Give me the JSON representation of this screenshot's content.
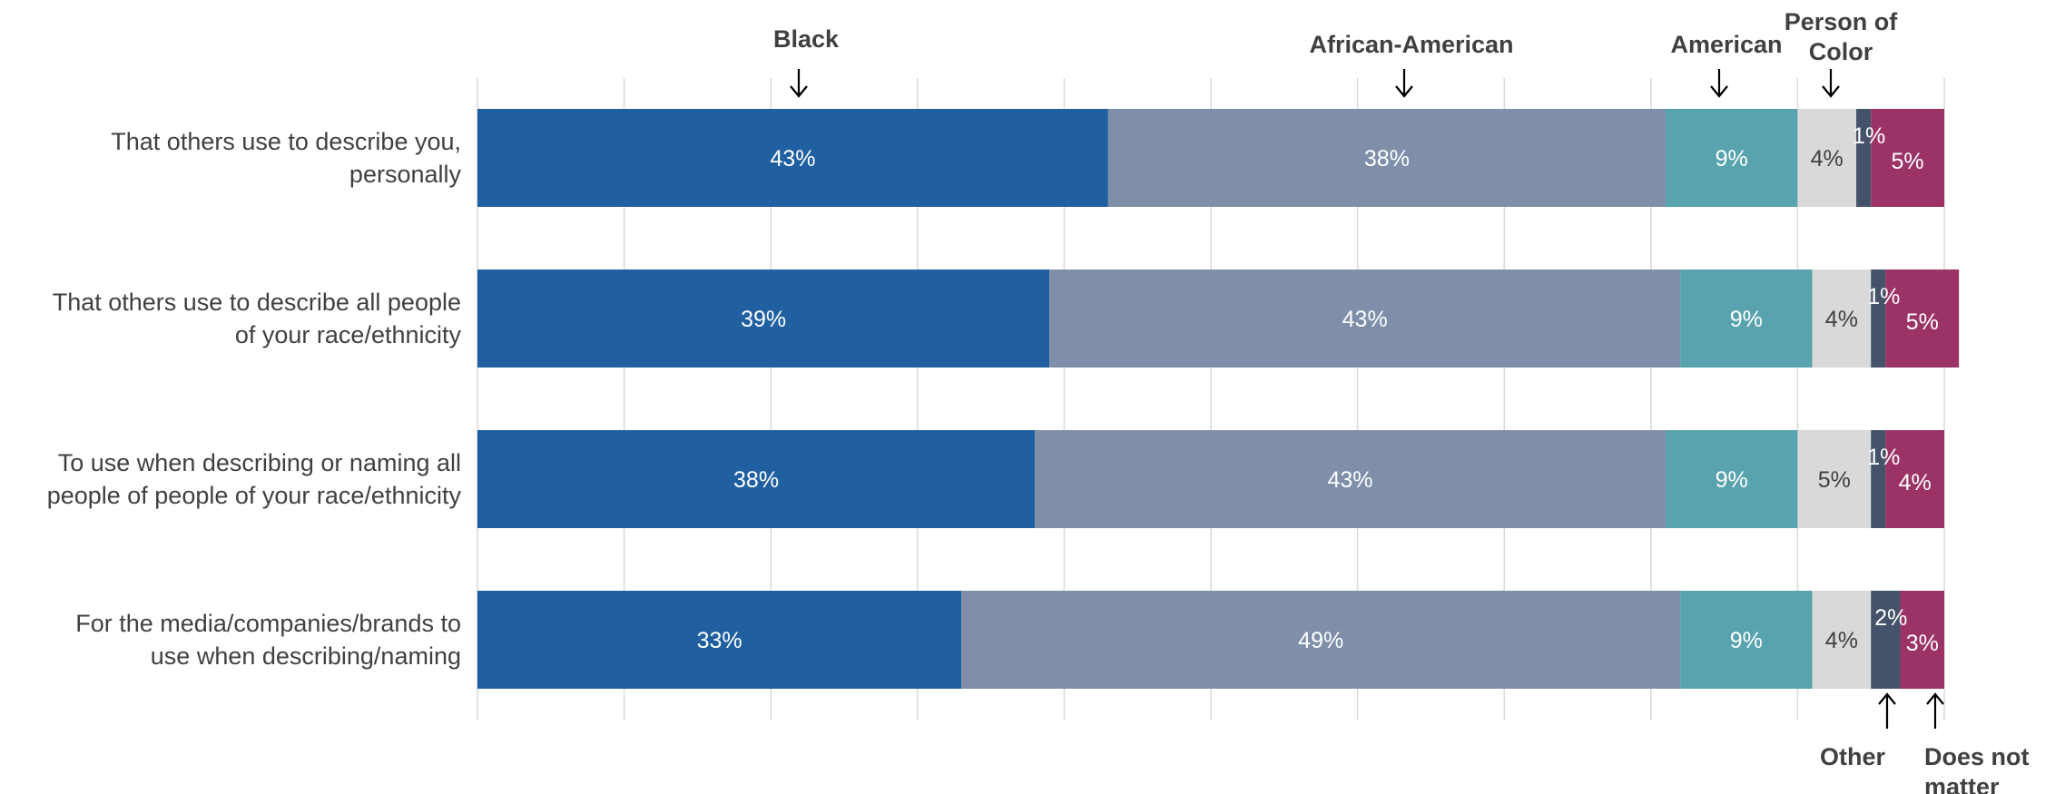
{
  "chart_data": {
    "type": "bar",
    "orientation": "horizontal",
    "stacked": true,
    "xlim": [
      0,
      100
    ],
    "grid": true,
    "categories": [
      [
        "That others use to describe you,",
        "personally"
      ],
      [
        "That others use to describe all people",
        "of your race/ethnicity"
      ],
      [
        "To use when describing or naming all",
        "people of people of your race/ethnicity"
      ],
      [
        "For the media/companies/brands to",
        "use when describing/naming"
      ]
    ],
    "series": [
      {
        "name": "Black",
        "legend_lines": [
          "Black"
        ],
        "legend_position": "top",
        "color": "#2060a0",
        "text_color": "#ffffff",
        "values": [
          43,
          39,
          38,
          33
        ],
        "labels": [
          "43%",
          "39%",
          "38%",
          "33%"
        ]
      },
      {
        "name": "African-American",
        "legend_lines": [
          "African-American"
        ],
        "legend_position": "top",
        "color": "#7f8fa9",
        "text_color": "#ffffff",
        "values": [
          38,
          43,
          43,
          49
        ],
        "labels": [
          "38%",
          "43%",
          "43%",
          "49%"
        ]
      },
      {
        "name": "American",
        "legend_lines": [
          "American"
        ],
        "legend_position": "top",
        "color": "#58a3ae",
        "text_color": "#ffffff",
        "values": [
          9,
          9,
          9,
          9
        ],
        "labels": [
          "9%",
          "9%",
          "9%",
          "9%"
        ]
      },
      {
        "name": "Person of Color",
        "legend_lines": [
          "Person of",
          "Color"
        ],
        "legend_position": "top",
        "color": "#d9d9d9",
        "text_color": "#404040",
        "values": [
          4,
          4,
          5,
          4
        ],
        "labels": [
          "4%",
          "4%",
          "5%",
          "4%"
        ]
      },
      {
        "name": "Other",
        "legend_lines": [
          "Other"
        ],
        "legend_position": "bottom",
        "color": "#445369",
        "text_color": "#ffffff",
        "values": [
          1,
          1,
          1,
          2
        ],
        "labels": [
          "1%",
          "1%",
          "1%",
          "2%"
        ]
      },
      {
        "name": "Does not matter",
        "legend_lines": [
          "Does not",
          "matter"
        ],
        "legend_position": "bottom",
        "color": "#9b3366",
        "text_color": "#ffffff",
        "values": [
          5,
          5,
          4,
          3
        ],
        "labels": [
          "5%",
          "5%",
          "4%",
          "3%"
        ]
      }
    ]
  }
}
